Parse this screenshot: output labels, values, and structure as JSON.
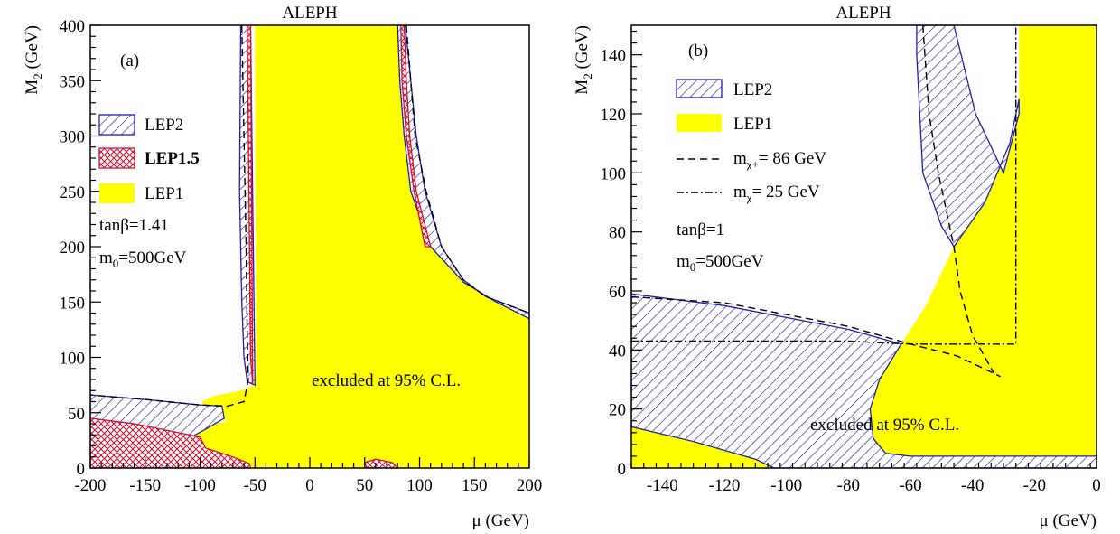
{
  "colors": {
    "lep1_fill": "#ffff00",
    "lep2_hatch": "#1f1fb0",
    "lep15_hatch": "#d01030",
    "frame": "#000000"
  },
  "chart_data": [
    {
      "type": "area",
      "panel_label": "(a)",
      "title": "ALEPH",
      "xlabel": "μ (GeV)",
      "ylabel_main": "M",
      "ylabel_sub": "2",
      "ylabel_unit": " (GeV)",
      "xlim": [
        -200,
        200
      ],
      "ylim": [
        0,
        400
      ],
      "xticks": [
        -200,
        -150,
        -100,
        -50,
        0,
        50,
        100,
        150,
        200
      ],
      "xtick_labels": [
        "-200",
        "-150",
        "-100",
        "-50",
        "0",
        "50",
        "100",
        "150",
        "200"
      ],
      "yticks": [
        0,
        50,
        100,
        150,
        200,
        250,
        300,
        350,
        400
      ],
      "ytick_labels": [
        "0",
        "50",
        "100",
        "150",
        "200",
        "250",
        "300",
        "350",
        "400"
      ],
      "legend_position": "left",
      "legend": [
        {
          "label": "LEP2",
          "style": "hatch-blue"
        },
        {
          "label": "LEP1.5",
          "style": "crosshatch-red"
        },
        {
          "label": "LEP1",
          "style": "fill-yellow"
        }
      ],
      "params": [
        "tanβ=1.41",
        "m0=500GeV"
      ],
      "param_rendered": [
        {
          "main": "tanβ=1.41",
          "sub": ""
        },
        {
          "main": "m",
          "sub": "0",
          "rest": "=500GeV"
        }
      ],
      "annotation": {
        "text": "excluded at 95% C.L.",
        "x": 110,
        "y": 78
      },
      "regions": {
        "LEP1": [
          [
            [
              -54,
              400
            ],
            [
              -50,
              400
            ],
            [
              -49,
              85
            ],
            [
              -50,
              75
            ],
            [
              -62,
              70
            ],
            [
              -88,
              65
            ],
            [
              -98,
              60
            ],
            [
              -95,
              50
            ],
            [
              -75,
              42
            ],
            [
              -100,
              38
            ],
            [
              -110,
              30
            ],
            [
              -95,
              18
            ],
            [
              -70,
              10
            ],
            [
              -55,
              4
            ],
            [
              -52,
              0
            ],
            [
              200,
              0
            ],
            [
              200,
              135
            ],
            [
              170,
              150
            ],
            [
              140,
              168
            ],
            [
              110,
              200
            ],
            [
              92,
              250
            ],
            [
              86,
              300
            ],
            [
              82,
              350
            ],
            [
              80,
              400
            ]
          ],
          [
            [
              -200,
              20
            ],
            [
              -150,
              15
            ],
            [
              -120,
              10
            ],
            [
              -95,
              4
            ],
            [
              -85,
              0
            ],
            [
              -200,
              0
            ]
          ]
        ],
        "LEP2": [
          [
            [
              -200,
              66
            ],
            [
              -150,
              62
            ],
            [
              -100,
              57
            ],
            [
              -80,
              56
            ],
            [
              -78,
              45
            ],
            [
              -95,
              35
            ],
            [
              -110,
              27
            ],
            [
              -150,
              35
            ],
            [
              -200,
              42
            ]
          ],
          [
            [
              -63,
              400
            ],
            [
              -54,
              400
            ],
            [
              -50,
              75
            ],
            [
              -57,
              78
            ],
            [
              -60,
              100
            ],
            [
              -62,
              150
            ],
            [
              -64,
              250
            ]
          ],
          [
            [
              80,
              400
            ],
            [
              87,
              400
            ],
            [
              97,
              300
            ],
            [
              105,
              250
            ],
            [
              120,
              200
            ],
            [
              140,
              170
            ],
            [
              160,
              155
            ],
            [
              200,
              140
            ],
            [
              200,
              135
            ],
            [
              170,
              150
            ],
            [
              140,
              168
            ],
            [
              110,
              200
            ],
            [
              92,
              250
            ],
            [
              86,
              300
            ],
            [
              82,
              350
            ]
          ]
        ],
        "LEP15": [
          [
            [
              -200,
              45
            ],
            [
              -160,
              40
            ],
            [
              -120,
              32
            ],
            [
              -100,
              28
            ],
            [
              -95,
              18
            ],
            [
              -70,
              10
            ],
            [
              -55,
              4
            ],
            [
              -54,
              0
            ],
            [
              -200,
              0
            ]
          ],
          [
            [
              -57,
              400
            ],
            [
              -54,
              400
            ],
            [
              -52,
              75
            ],
            [
              -54,
              100
            ],
            [
              -55,
              200
            ]
          ],
          [
            [
              83,
              400
            ],
            [
              86,
              400
            ],
            [
              88,
              350
            ],
            [
              91,
              300
            ],
            [
              97,
              250
            ],
            [
              110,
              200
            ],
            [
              105,
              200
            ],
            [
              95,
              250
            ],
            [
              88,
              300
            ],
            [
              84,
              350
            ]
          ],
          [
            [
              50,
              5
            ],
            [
              60,
              8
            ],
            [
              75,
              5
            ],
            [
              80,
              0
            ],
            [
              52,
              0
            ]
          ]
        ]
      },
      "lines": [
        {
          "style": "dashed",
          "points": [
            [
              -62,
              400
            ],
            [
              -60,
              300
            ],
            [
              -58,
              200
            ],
            [
              -57,
              120
            ],
            [
              -56,
              80
            ],
            [
              -60,
              60
            ],
            [
              -75,
              56
            ],
            [
              -100,
              57
            ],
            [
              -150,
              62
            ],
            [
              -200,
              66
            ]
          ]
        },
        {
          "style": "dashed",
          "points": [
            [
              88,
              400
            ],
            [
              96,
              300
            ],
            [
              106,
              250
            ],
            [
              120,
              200
            ],
            [
              140,
              170
            ],
            [
              160,
              155
            ],
            [
              200,
              140
            ]
          ]
        }
      ]
    },
    {
      "type": "area",
      "panel_label": "(b)",
      "title": "ALEPH",
      "xlabel": "μ (GeV)",
      "ylabel_main": "M",
      "ylabel_sub": "2",
      "ylabel_unit": " (GeV)",
      "xlim": [
        -150,
        0
      ],
      "ylim": [
        0,
        150
      ],
      "xticks": [
        -140,
        -120,
        -100,
        -80,
        -60,
        -40,
        -20,
        0
      ],
      "xtick_labels": [
        "-140",
        "-120",
        "-100",
        "-80",
        "-60",
        "-40",
        "-20",
        "0"
      ],
      "yticks": [
        0,
        20,
        40,
        60,
        80,
        100,
        120,
        140
      ],
      "ytick_labels": [
        "0",
        "20",
        "40",
        "60",
        "80",
        "100",
        "120",
        "140"
      ],
      "legend_position": "left",
      "legend": [
        {
          "label": "LEP2",
          "style": "hatch-blue"
        },
        {
          "label": "LEP1",
          "style": "fill-yellow"
        },
        {
          "label": "m",
          "sub": "χ+",
          "rest": "= 86 GeV",
          "style": "dashed"
        },
        {
          "label": "m",
          "sub": "χ",
          "rest": "= 25 GeV",
          "style": "dashdot"
        }
      ],
      "params": [
        "tanβ=1",
        "m0=500GeV"
      ],
      "param_rendered": [
        {
          "main": "tanβ=1",
          "sub": ""
        },
        {
          "main": "m",
          "sub": "0",
          "rest": "=500GeV"
        }
      ],
      "annotation": {
        "text": "excluded at 95% C.L.",
        "x": -87,
        "y": 15
      },
      "regions": {
        "LEP1": [
          [
            [
              -25,
              150
            ],
            [
              0,
              150
            ],
            [
              0,
              0
            ],
            [
              -75,
              0
            ],
            [
              -75,
              20
            ],
            [
              -70,
              30
            ],
            [
              -63,
              42
            ],
            [
              -55,
              55
            ],
            [
              -46,
              75
            ],
            [
              -36,
              90
            ],
            [
              -28,
              110
            ],
            [
              -25,
              125
            ]
          ],
          [
            [
              -150,
              14
            ],
            [
              -130,
              9
            ],
            [
              -110,
              3
            ],
            [
              -104,
              0
            ],
            [
              -150,
              0
            ]
          ]
        ],
        "LEP2": [
          [
            [
              -150,
              59
            ],
            [
              -120,
              55
            ],
            [
              -100,
              51
            ],
            [
              -80,
              47
            ],
            [
              -63,
              42
            ],
            [
              -70,
              30
            ],
            [
              -73,
              20
            ],
            [
              -72,
              10
            ],
            [
              -68,
              5
            ],
            [
              -60,
              4
            ],
            [
              -50,
              4
            ],
            [
              0,
              4
            ],
            [
              0,
              0
            ],
            [
              -104,
              0
            ],
            [
              -110,
              3
            ],
            [
              -130,
              9
            ],
            [
              -150,
              14
            ]
          ],
          [
            [
              -58,
              150
            ],
            [
              -46,
              150
            ],
            [
              -39,
              120
            ],
            [
              -30,
              100
            ],
            [
              -25,
              120
            ],
            [
              -25,
              125
            ],
            [
              -28,
              110
            ],
            [
              -36,
              90
            ],
            [
              -46,
              75
            ],
            [
              -50,
              82
            ],
            [
              -56,
              100
            ],
            [
              -58,
              140
            ]
          ]
        ]
      },
      "lines": [
        {
          "style": "dashed",
          "points": [
            [
              -150,
              58
            ],
            [
              -120,
              56
            ],
            [
              -100,
              52
            ],
            [
              -80,
              48
            ],
            [
              -60,
              42
            ],
            [
              -45,
              38
            ],
            [
              -31,
              31
            ]
          ]
        },
        {
          "style": "dashed",
          "points": [
            [
              -56,
              150
            ],
            [
              -54,
              120
            ],
            [
              -51,
              100
            ],
            [
              -48,
              85
            ],
            [
              -46,
              75
            ],
            [
              -44,
              60
            ],
            [
              -40,
              45
            ],
            [
              -33,
              32
            ]
          ]
        },
        {
          "style": "dashdot",
          "points": [
            [
              -150,
              43
            ],
            [
              -120,
              43
            ],
            [
              -80,
              43
            ],
            [
              -60,
              42
            ],
            [
              -40,
              42
            ],
            [
              -26,
              42
            ],
            [
              -26,
              150
            ]
          ]
        }
      ]
    }
  ]
}
